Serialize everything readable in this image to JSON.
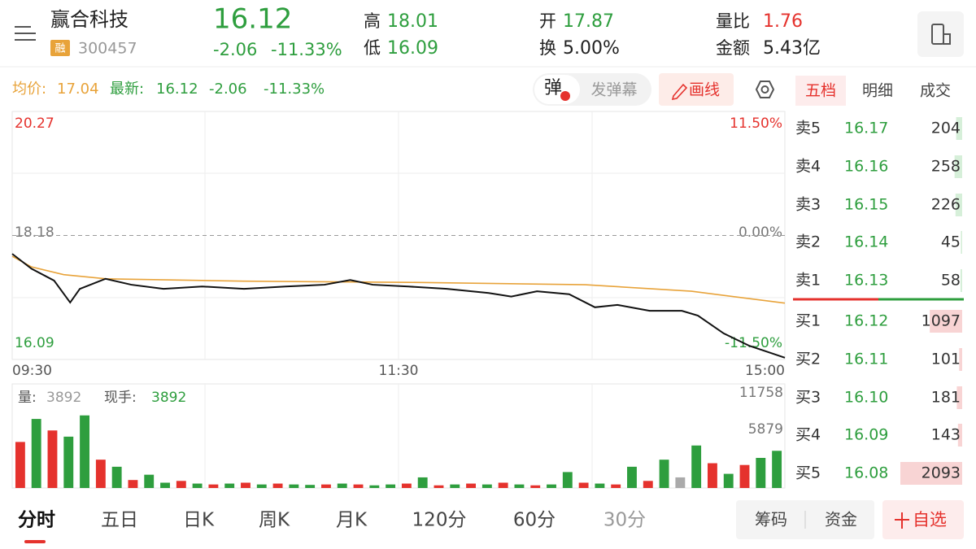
{
  "header": {
    "name": "赢合科技",
    "badge": "融",
    "code": "300457",
    "price": "16.12",
    "change": "-2.06",
    "change_pct": "-11.33%",
    "high_label": "高",
    "high": "18.01",
    "low_label": "低",
    "low": "16.09",
    "open_label": "开",
    "open": "17.87",
    "turnover_label": "换",
    "turnover": "5.00%",
    "vol_ratio_label": "量比",
    "vol_ratio": "1.76",
    "amount_label": "金额",
    "amount": "5.43亿"
  },
  "info_bar": {
    "avg_label": "均价:",
    "avg": "17.04",
    "latest_label": "最新:",
    "latest": "16.12",
    "change": "-2.06",
    "change_pct": "-11.33%",
    "danmaku_icon": "弹",
    "danmaku": "发弹幕",
    "draw_line": "画线"
  },
  "side_tabs": [
    "五档",
    "明细",
    "成交"
  ],
  "order_book": {
    "asks": [
      {
        "label": "卖5",
        "price": "16.17",
        "volume": 204
      },
      {
        "label": "卖4",
        "price": "16.16",
        "volume": 258
      },
      {
        "label": "卖3",
        "price": "16.15",
        "volume": 226
      },
      {
        "label": "卖2",
        "price": "16.14",
        "volume": 45
      },
      {
        "label": "卖1",
        "price": "16.13",
        "volume": 58
      }
    ],
    "bids": [
      {
        "label": "买1",
        "price": "16.12",
        "volume": 1097
      },
      {
        "label": "买2",
        "price": "16.11",
        "volume": 101
      },
      {
        "label": "买3",
        "price": "16.10",
        "volume": 181
      },
      {
        "label": "买4",
        "price": "16.09",
        "volume": 143
      },
      {
        "label": "买5",
        "price": "16.08",
        "volume": 2093
      }
    ]
  },
  "chart": {
    "price_top": "20.27",
    "pct_top": "11.50%",
    "price_mid": "18.18",
    "pct_mid": "0.00%",
    "price_bottom": "16.09",
    "pct_bottom": "-11.50%",
    "times": [
      "09:30",
      "11:30",
      "15:00"
    ],
    "ylim": [
      16.09,
      20.27
    ],
    "ref": 18.18,
    "xlim": [
      0,
      240
    ],
    "price": {
      "color": "#111111",
      "x": [
        0,
        6,
        13,
        18,
        21,
        29,
        37,
        47,
        59,
        72,
        85,
        97,
        105,
        112,
        123,
        135,
        148,
        155,
        163,
        173,
        181,
        188,
        198,
        208,
        213,
        221,
        229,
        234,
        240
      ],
      "values": [
        17.87,
        17.62,
        17.42,
        17.05,
        17.28,
        17.45,
        17.35,
        17.28,
        17.32,
        17.28,
        17.32,
        17.35,
        17.43,
        17.35,
        17.32,
        17.28,
        17.21,
        17.15,
        17.24,
        17.19,
        16.97,
        17.01,
        16.91,
        16.91,
        16.83,
        16.53,
        16.32,
        16.23,
        16.12
      ]
    },
    "avg": {
      "color": "#e8a33a",
      "x": [
        0,
        6,
        16,
        29,
        72,
        123,
        178,
        211,
        240
      ],
      "values": [
        17.83,
        17.65,
        17.52,
        17.45,
        17.41,
        17.39,
        17.35,
        17.24,
        17.04
      ]
    }
  },
  "volume": {
    "label": "量:",
    "value": "3892",
    "hand_label": "现手:",
    "hand": "3892",
    "ylim": [
      0,
      11758
    ],
    "yticks": [
      5879,
      11758
    ],
    "values": [
      5200,
      7800,
      6500,
      5800,
      8200,
      3200,
      2400,
      900,
      1500,
      600,
      800,
      500,
      400,
      500,
      600,
      400,
      500,
      400,
      350,
      400,
      500,
      400,
      300,
      400,
      500,
      1200,
      300,
      400,
      500,
      400,
      600,
      400,
      300,
      400,
      1800,
      600,
      500,
      400,
      2400,
      800,
      3200,
      1200,
      4800,
      2800,
      1600,
      2600,
      3400,
      4200
    ],
    "colors": [
      "#e5322d",
      "#2e9e3e",
      "#e5322d",
      "#2e9e3e",
      "#2e9e3e",
      "#e5322d",
      "#2e9e3e",
      "#e5322d",
      "#2e9e3e",
      "#2e9e3e",
      "#e5322d",
      "#2e9e3e",
      "#e5322d",
      "#2e9e3e",
      "#e5322d",
      "#2e9e3e",
      "#e5322d",
      "#2e9e3e",
      "#2e9e3e",
      "#e5322d",
      "#2e9e3e",
      "#e5322d",
      "#2e9e3e",
      "#2e9e3e",
      "#e5322d",
      "#2e9e3e",
      "#e5322d",
      "#2e9e3e",
      "#e5322d",
      "#2e9e3e",
      "#e5322d",
      "#2e9e3e",
      "#e5322d",
      "#2e9e3e",
      "#2e9e3e",
      "#e5322d",
      "#2e9e3e",
      "#e5322d",
      "#2e9e3e",
      "#e5322d",
      "#2e9e3e",
      "#aaaaaa",
      "#2e9e3e",
      "#e5322d",
      "#2e9e3e",
      "#e5322d",
      "#2e9e3e",
      "#2e9e3e"
    ]
  },
  "bottom_tabs": [
    "分时",
    "五日",
    "日K",
    "周K",
    "月K",
    "120分",
    "60分",
    "30分"
  ],
  "bottom_buttons": [
    "筹码",
    "资金"
  ],
  "watch": "自选"
}
